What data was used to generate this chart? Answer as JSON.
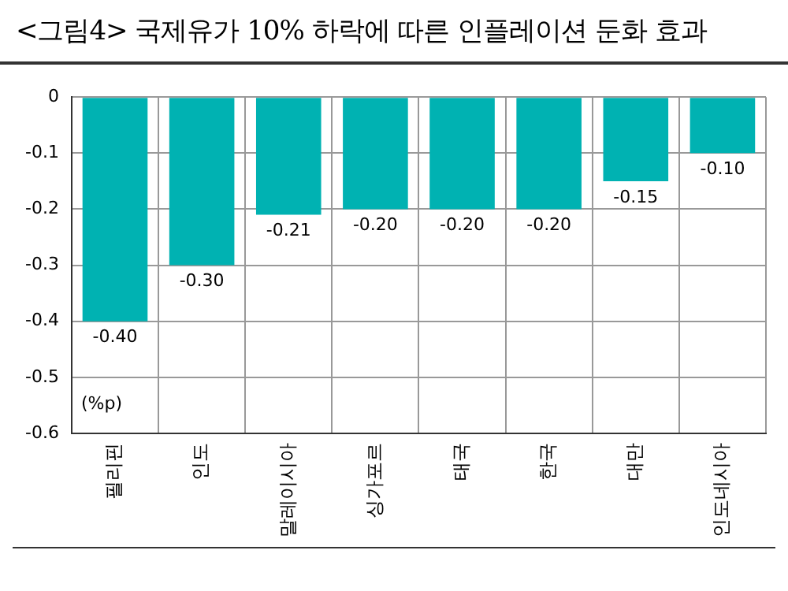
{
  "chart_data": {
    "type": "bar",
    "title": "<그림4> 국제유가 10% 하락에 따른 인플레이션 둔화 효과",
    "ylabel": "(%p)",
    "categories": [
      "필리핀",
      "인도",
      "말레이시아",
      "싱가포르",
      "태국",
      "한국",
      "대만",
      "인도네시아"
    ],
    "values": [
      -0.4,
      -0.3,
      -0.21,
      -0.2,
      -0.2,
      -0.2,
      -0.15,
      -0.1
    ],
    "value_labels": [
      "-0.40",
      "-0.30",
      "-0.21",
      "-0.20",
      "-0.20",
      "-0.20",
      "-0.15",
      "-0.10"
    ],
    "color": "#00b2b2",
    "ylim": [
      -0.6,
      0
    ],
    "yticks": [
      {
        "value": -0.6,
        "label": "-0.6"
      },
      {
        "value": -0.5,
        "label": "-0.5"
      },
      {
        "value": -0.4,
        "label": "-0.4"
      },
      {
        "value": -0.3,
        "label": "-0.3"
      },
      {
        "value": -0.2,
        "label": "-0.2"
      },
      {
        "value": -0.1,
        "label": "-0.1"
      },
      0
    ],
    "grid": true
  }
}
